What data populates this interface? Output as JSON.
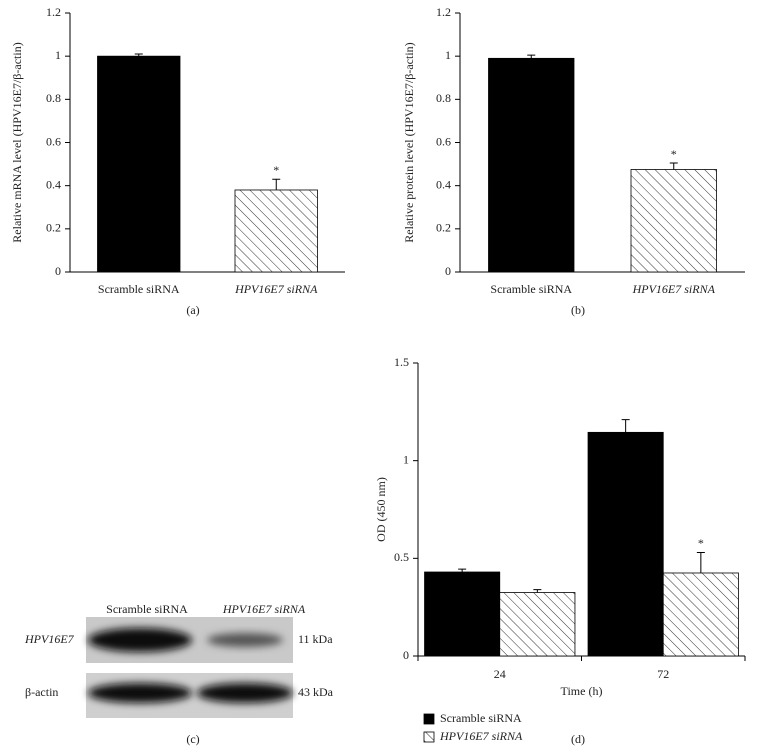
{
  "chart_data": [
    {
      "type": "bar",
      "label": "(a)",
      "ylabel": "Relative mRNA level (HPV16E7/β-actin)",
      "categories": [
        "Scramble siRNA",
        "HPV16E7 siRNA"
      ],
      "values": [
        1.0,
        0.38
      ],
      "errors": [
        0.01,
        0.05
      ],
      "colors": [
        "#000000",
        "hatch"
      ],
      "annotations": [
        {
          "category": "HPV16E7 siRNA",
          "text": "*"
        }
      ],
      "ylim": [
        0,
        1.2
      ],
      "yticks": [
        0,
        0.2,
        0.4,
        0.6,
        0.8,
        1,
        1.2
      ]
    },
    {
      "type": "bar",
      "label": "(b)",
      "ylabel": "Relative protein level (HPV16E7/β-actin)",
      "categories": [
        "Scramble siRNA",
        "HPV16E7 siRNA"
      ],
      "values": [
        0.99,
        0.475
      ],
      "errors": [
        0.015,
        0.03
      ],
      "colors": [
        "#000000",
        "hatch"
      ],
      "annotations": [
        {
          "category": "HPV16E7 siRNA",
          "text": "*"
        }
      ],
      "ylim": [
        0,
        1.2
      ],
      "yticks": [
        0,
        0.2,
        0.4,
        0.6,
        0.8,
        1,
        1.2
      ]
    },
    {
      "type": "grouped_bar",
      "label": "(d)",
      "ylabel": "OD (450 nm)",
      "xlabel": "Time (h)",
      "categories": [
        "24",
        "72"
      ],
      "series": [
        {
          "name": "Scramble siRNA",
          "color": "#000000",
          "values": [
            0.43,
            1.145
          ],
          "errors": [
            0.015,
            0.065
          ]
        },
        {
          "name": "HPV16E7 siRNA",
          "color": "hatch",
          "values": [
            0.325,
            0.425
          ],
          "errors": [
            0.015,
            0.105
          ]
        }
      ],
      "annotations": [
        {
          "category": "72",
          "series": "HPV16E7 siRNA",
          "text": "*"
        }
      ],
      "legend": "below-left",
      "ylim": [
        0,
        1.5
      ],
      "yticks": [
        0,
        0.5,
        1,
        1.5
      ]
    }
  ],
  "blot": {
    "label": "(c)",
    "columns": [
      "Scramble siRNA",
      "HPV16E7 siRNA"
    ],
    "rows": [
      {
        "name": "HPV16E7",
        "size": "11 kDa"
      },
      {
        "name": "β-actin",
        "size": "43 kDa"
      }
    ]
  }
}
